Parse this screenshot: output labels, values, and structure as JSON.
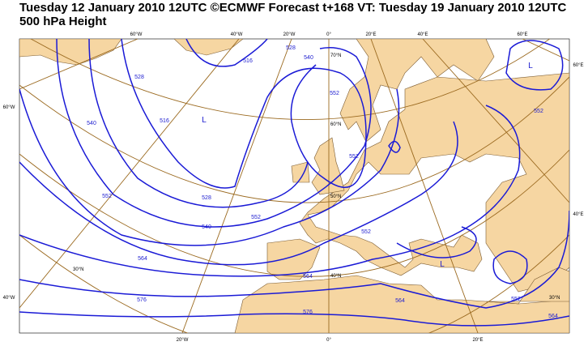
{
  "header": {
    "title": "Tuesday 12 January 2010 12UTC ©ECMWF Forecast t+168 VT: Tuesday 19 January 2010 12UTC",
    "subtitle": "500 hPa Height"
  },
  "map": {
    "lon_labels": [
      "60°W",
      "40°W",
      "20°W",
      "0°",
      "20°E",
      "40°E",
      "60°E",
      "60°E",
      "40°E",
      "60°W",
      "40°W",
      "20°W",
      "0°",
      "20°E"
    ],
    "lat_labels": [
      "70°N",
      "60°N",
      "50°N",
      "40°N",
      "30°N",
      "30°N"
    ],
    "contour_labels": [
      "528",
      "516",
      "528",
      "540",
      "552",
      "540",
      "516",
      "552",
      "528",
      "540",
      "552",
      "564",
      "564",
      "576",
      "576",
      "552",
      "564",
      "552",
      "564",
      "552",
      "552"
    ],
    "lows": [
      "L",
      "L",
      "L"
    ]
  }
}
